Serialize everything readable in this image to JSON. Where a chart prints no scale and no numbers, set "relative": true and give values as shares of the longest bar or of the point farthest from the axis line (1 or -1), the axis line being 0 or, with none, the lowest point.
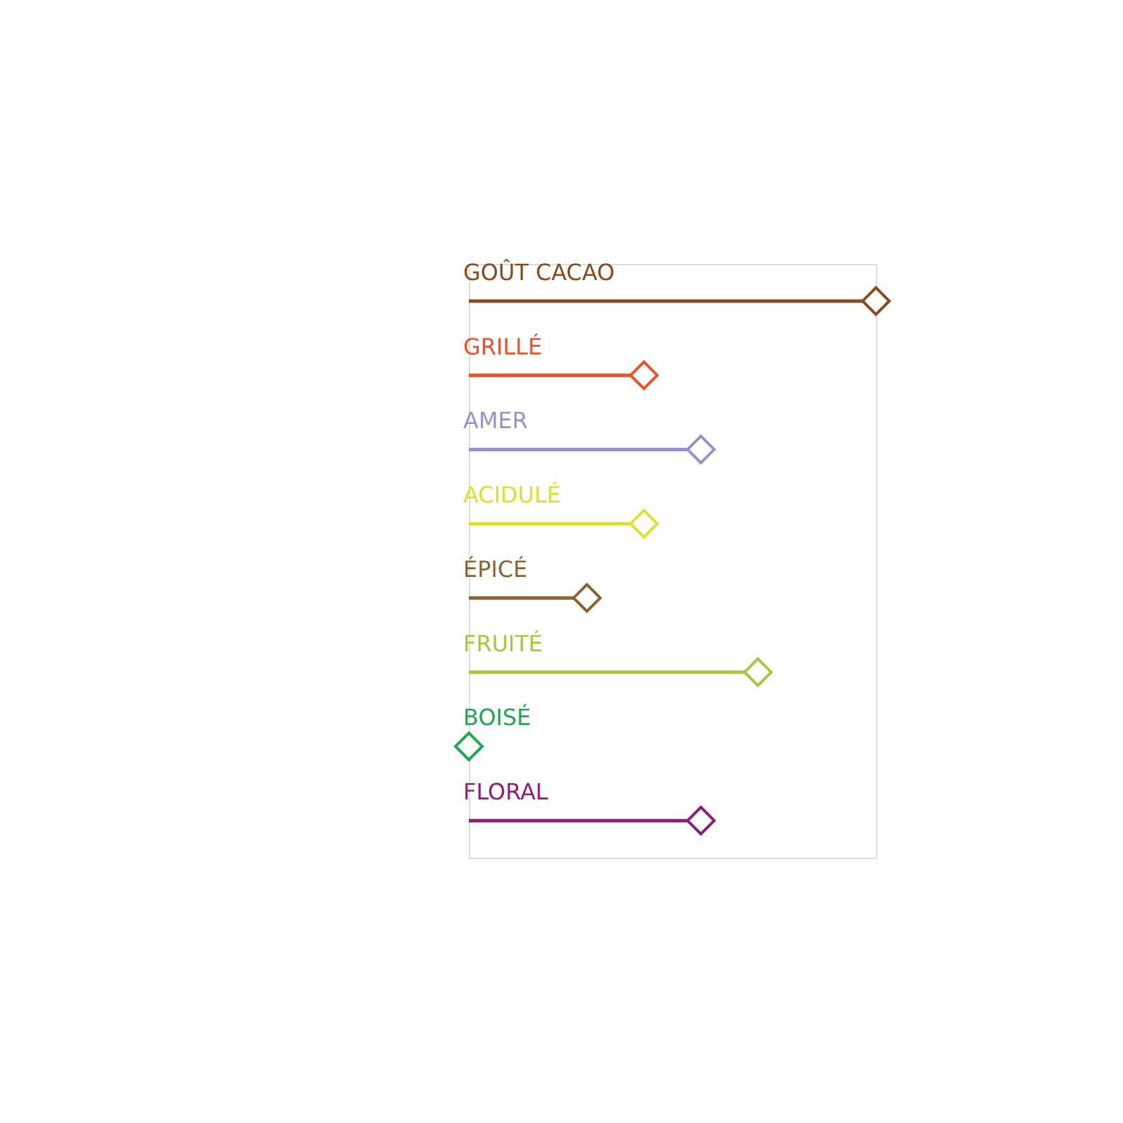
{
  "chart_data": {
    "type": "lollipop",
    "orientation": "horizontal",
    "relative": true,
    "categories": [
      "GOÛT CACAO",
      "GRILLÉ",
      "AMER",
      "ACIDULÉ",
      "ÉPICÉ",
      "FRUITÉ",
      "BOISÉ",
      "FLORAL"
    ],
    "values": [
      1,
      0.43,
      0.57,
      0.43,
      0.29,
      0.71,
      0,
      0.57
    ],
    "colors": [
      "#8b4a1e",
      "#e8532d",
      "#9890d0",
      "#dde030",
      "#8b6330",
      "#a9c73a",
      "#1fa64e",
      "#8e1e7a"
    ],
    "marker": "diamond"
  }
}
